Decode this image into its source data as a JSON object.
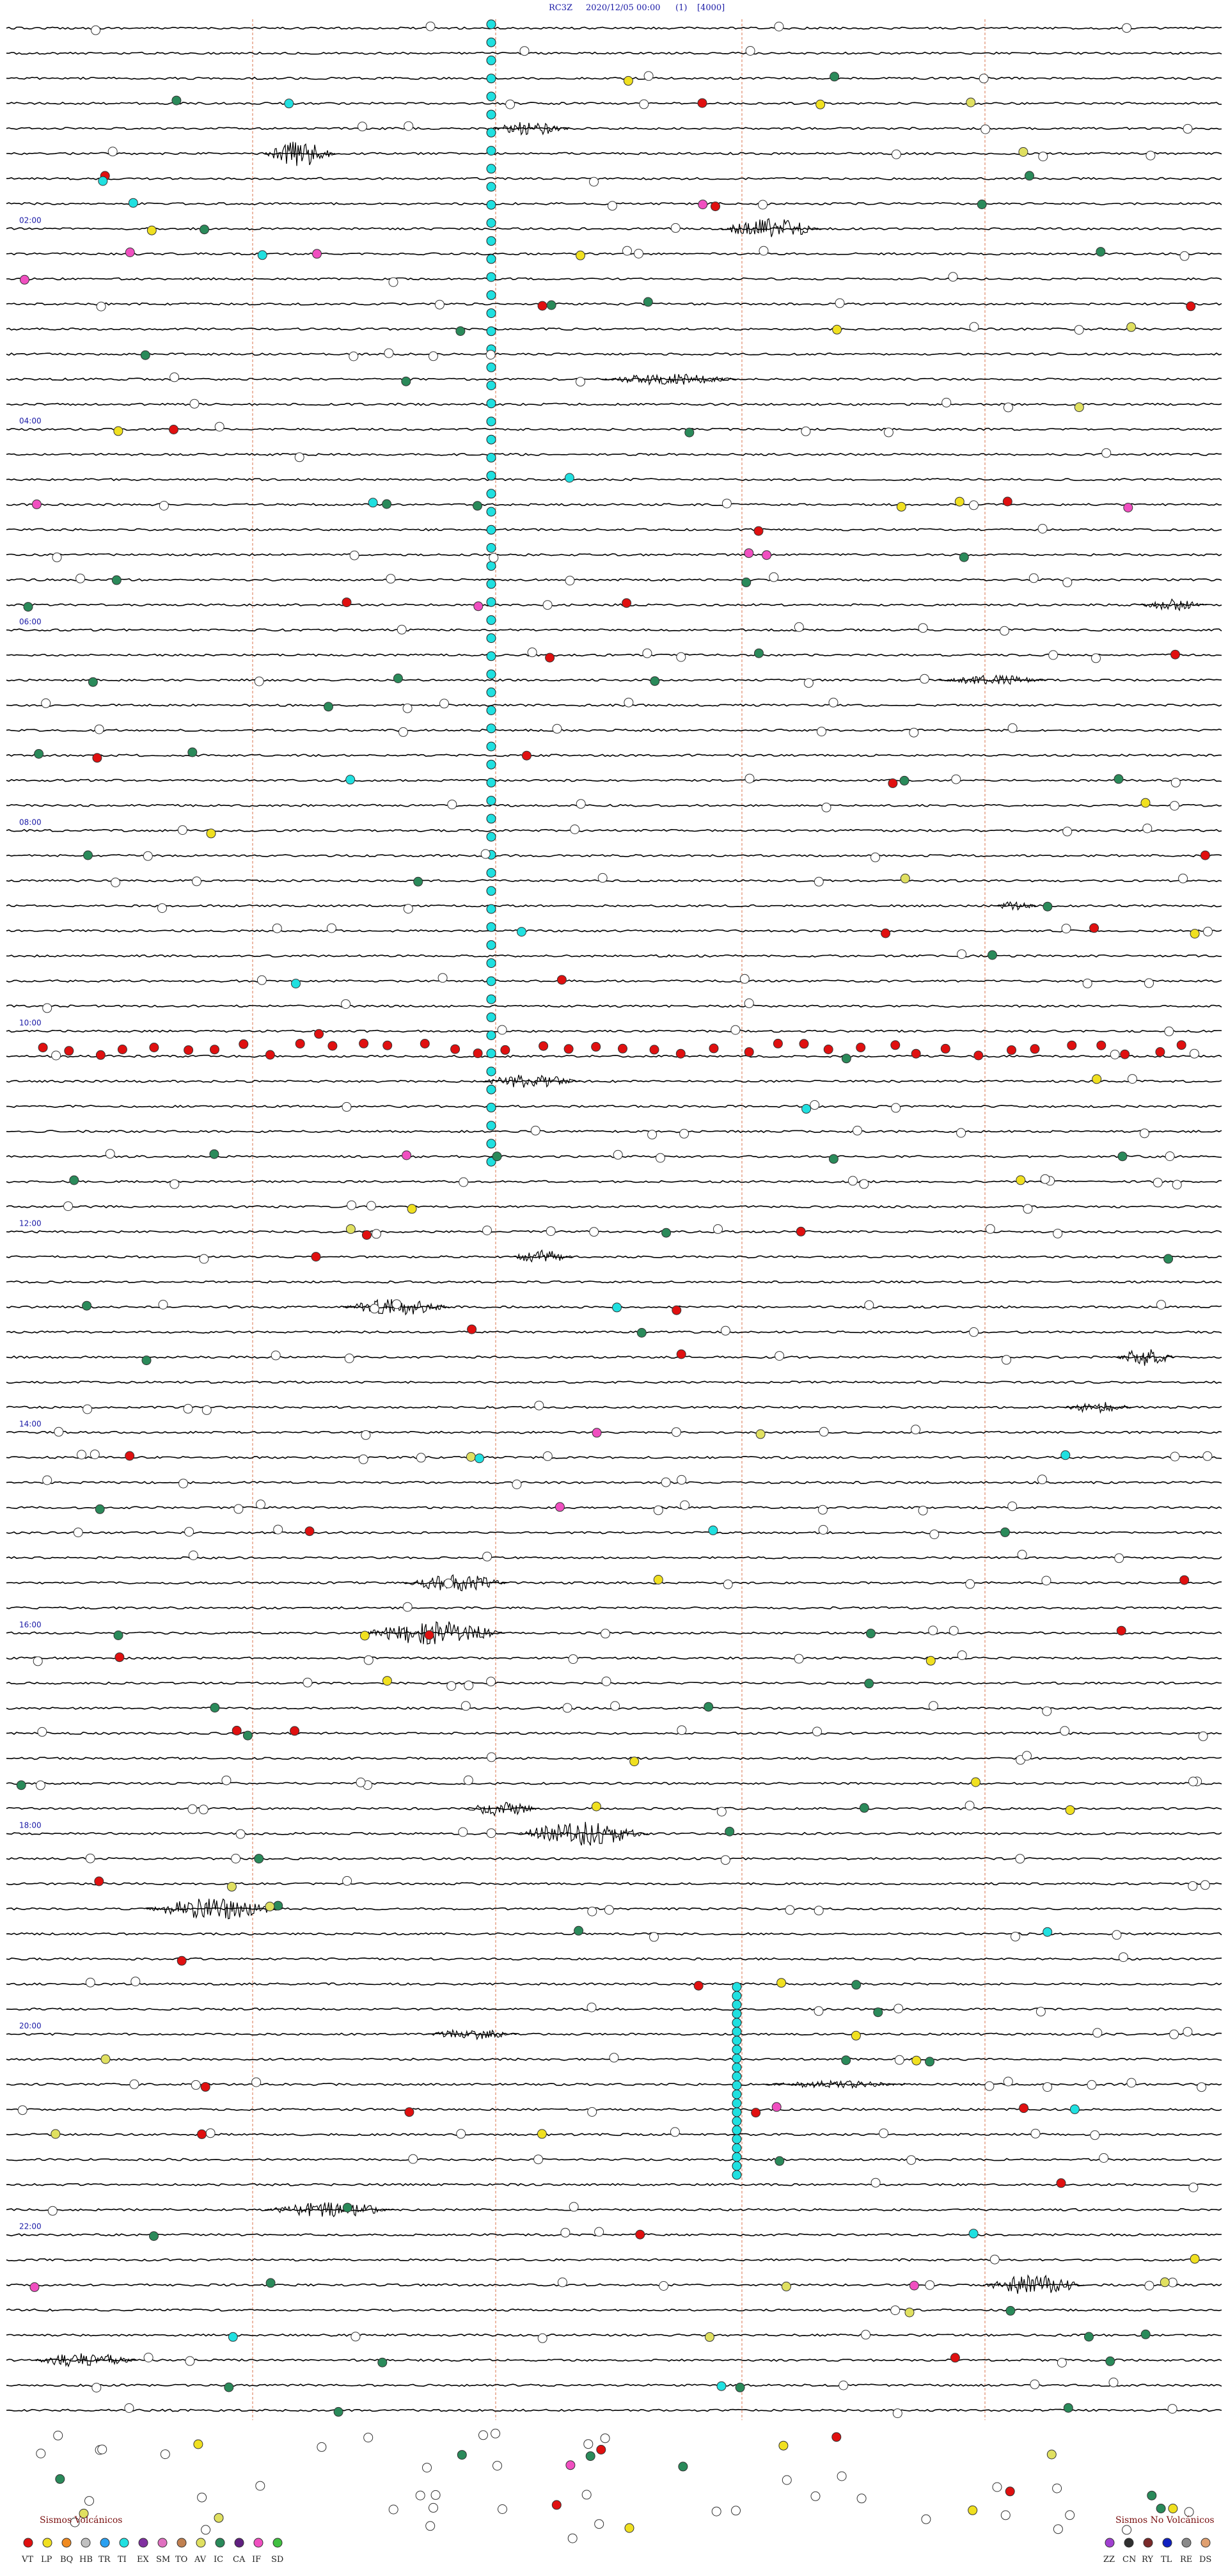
{
  "header": {
    "station": "RC3Z",
    "datetime": "2020/12/05 00:00",
    "page": "(1)",
    "scale": "[4000]"
  },
  "chart_data": {
    "type": "seismic helicorder",
    "rows": 96,
    "minutes_per_row": 15,
    "hour_labels": [
      "02:00",
      "04:00",
      "06:00",
      "08:00",
      "10:00",
      "12:00",
      "14:00",
      "16:00",
      "18:00",
      "20:00",
      "22:00"
    ],
    "legend_volcanic": {
      "title": "Sismos Volcánicos",
      "codes": [
        "VT",
        "LP",
        "BQ",
        "HB",
        "TR",
        "TI",
        "EX",
        "SM",
        "TO",
        "AV",
        "IC",
        "CA",
        "IF",
        "SD"
      ],
      "colors": [
        "#e01010",
        "#f0e020",
        "#f08a20",
        "#c0c0c0",
        "#2aa0f0",
        "#20e0e0",
        "#8030a0",
        "#e070c0",
        "#c08050",
        "#e0e060",
        "#2a8a5a",
        "#602080",
        "#f04fc0",
        "#40c040"
      ]
    },
    "legend_nonvolcanic": {
      "title": "Sismos No Volcánicos",
      "codes": [
        "ZZ",
        "CN",
        "RY",
        "TL",
        "RE",
        "DS"
      ],
      "colors": [
        "#a040d0",
        "#303030",
        "#7a2a2a",
        "#1020c0",
        "#8a8a8a",
        "#e0a070"
      ]
    }
  },
  "colors": {
    "trace": "#000000",
    "title": "#1a1aa6",
    "minute_marks": "#e08a6a",
    "ti_markers": "#20e0e0"
  }
}
